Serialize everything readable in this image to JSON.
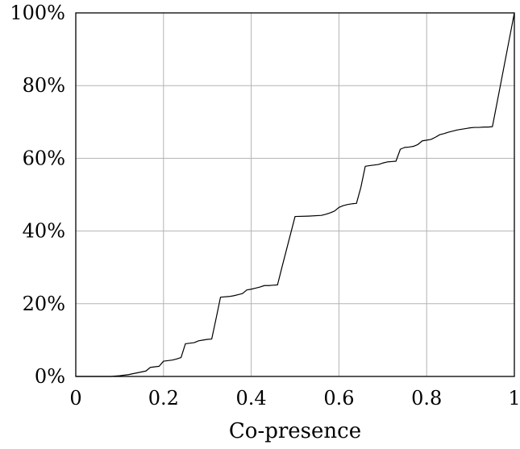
{
  "chart_data": {
    "type": "line",
    "title": "",
    "xlabel": "Co-presence",
    "ylabel": "",
    "xlim": [
      0,
      1
    ],
    "ylim": [
      0,
      100
    ],
    "grid": true,
    "legend": "none",
    "x_ticks": [
      {
        "value": 0,
        "label": "0"
      },
      {
        "value": 0.2,
        "label": "0.2"
      },
      {
        "value": 0.4,
        "label": "0.4"
      },
      {
        "value": 0.6,
        "label": "0.6"
      },
      {
        "value": 0.8,
        "label": "0.8"
      },
      {
        "value": 1,
        "label": "1"
      }
    ],
    "y_ticks": [
      {
        "value": 0,
        "label": "0%"
      },
      {
        "value": 20,
        "label": "20%"
      },
      {
        "value": 40,
        "label": "40%"
      },
      {
        "value": 60,
        "label": "60%"
      },
      {
        "value": 80,
        "label": "80%"
      },
      {
        "value": 100,
        "label": "100%"
      }
    ],
    "line_color": "#000000",
    "grid_color": "#b3b3b3",
    "series": [
      {
        "x": [
          0,
          0.08,
          0.1,
          0.12,
          0.14,
          0.16,
          0.17,
          0.19,
          0.2,
          0.22,
          0.23,
          0.24,
          0.25,
          0.27,
          0.28,
          0.29,
          0.3,
          0.31,
          0.32,
          0.33,
          0.35,
          0.36,
          0.37,
          0.38,
          0.39,
          0.4,
          0.41,
          0.42,
          0.43,
          0.44,
          0.45,
          0.46,
          0.47,
          0.5,
          0.53,
          0.56,
          0.57,
          0.58,
          0.59,
          0.6,
          0.61,
          0.62,
          0.63,
          0.64,
          0.65,
          0.66,
          0.67,
          0.69,
          0.7,
          0.71,
          0.72,
          0.73,
          0.74,
          0.75,
          0.76,
          0.77,
          0.78,
          0.79,
          0.8,
          0.81,
          0.82,
          0.83,
          0.84,
          0.85,
          0.86,
          0.87,
          0.88,
          0.89,
          0.9,
          0.91,
          0.92,
          0.93,
          0.94,
          0.95,
          1
        ],
        "y": [
          0,
          0,
          0.2,
          0.5,
          1,
          1.5,
          2.5,
          2.8,
          4.2,
          4.5,
          4.8,
          5.2,
          9,
          9.3,
          9.8,
          10,
          10.2,
          10.3,
          16,
          21.8,
          22,
          22.2,
          22.5,
          22.8,
          23.8,
          24,
          24.3,
          24.6,
          25,
          25,
          25.1,
          25.2,
          30,
          44,
          44.1,
          44.3,
          44.6,
          45,
          45.5,
          46.5,
          47,
          47.3,
          47.5,
          47.6,
          52,
          57.8,
          58,
          58.3,
          58.7,
          59,
          59.1,
          59.2,
          62.5,
          63,
          63.1,
          63.3,
          63.8,
          64.8,
          65,
          65.2,
          65.8,
          66.5,
          66.8,
          67.2,
          67.5,
          67.8,
          68,
          68.2,
          68.4,
          68.5,
          68.5,
          68.6,
          68.6,
          68.7,
          100
        ]
      }
    ]
  }
}
